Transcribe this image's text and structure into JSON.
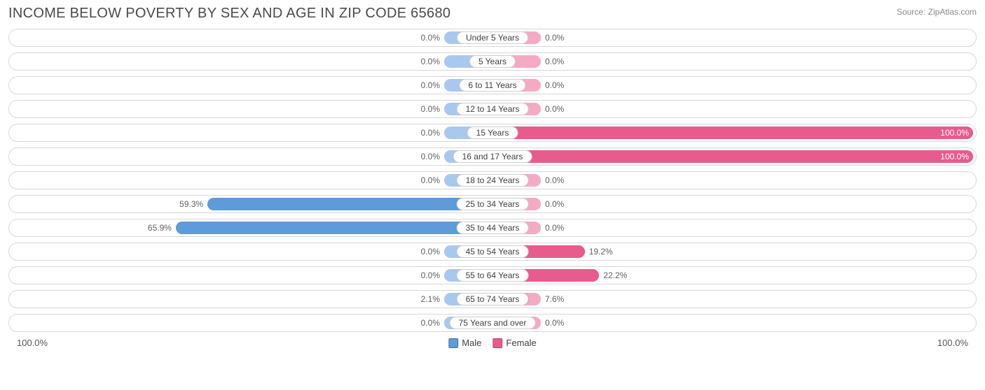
{
  "title": "INCOME BELOW POVERTY BY SEX AND AGE IN ZIP CODE 65680",
  "source": "Source: ZipAtlas.com",
  "colors": {
    "male_base": "#a9c8ef",
    "female_base": "#f5aac3",
    "male_val": "#5d9bd9",
    "female_val": "#e85b8d",
    "row_border": "#d8d8d8",
    "label_border": "#cfcfcf",
    "text": "#404040",
    "background": "#ffffff"
  },
  "chart": {
    "type": "bidirectional-bar",
    "max": 100.0,
    "base_bar_percent": 10.0,
    "axis_left": "100.0%",
    "axis_right": "100.0%",
    "legend": {
      "male": "Male",
      "female": "Female"
    },
    "rows": [
      {
        "label": "Under 5 Years",
        "male": 0.0,
        "female": 0.0,
        "male_label": "0.0%",
        "female_label": "0.0%"
      },
      {
        "label": "5 Years",
        "male": 0.0,
        "female": 0.0,
        "male_label": "0.0%",
        "female_label": "0.0%"
      },
      {
        "label": "6 to 11 Years",
        "male": 0.0,
        "female": 0.0,
        "male_label": "0.0%",
        "female_label": "0.0%"
      },
      {
        "label": "12 to 14 Years",
        "male": 0.0,
        "female": 0.0,
        "male_label": "0.0%",
        "female_label": "0.0%"
      },
      {
        "label": "15 Years",
        "male": 0.0,
        "female": 100.0,
        "male_label": "0.0%",
        "female_label": "100.0%"
      },
      {
        "label": "16 and 17 Years",
        "male": 0.0,
        "female": 100.0,
        "male_label": "0.0%",
        "female_label": "100.0%"
      },
      {
        "label": "18 to 24 Years",
        "male": 0.0,
        "female": 0.0,
        "male_label": "0.0%",
        "female_label": "0.0%"
      },
      {
        "label": "25 to 34 Years",
        "male": 59.3,
        "female": 0.0,
        "male_label": "59.3%",
        "female_label": "0.0%"
      },
      {
        "label": "35 to 44 Years",
        "male": 65.9,
        "female": 0.0,
        "male_label": "65.9%",
        "female_label": "0.0%"
      },
      {
        "label": "45 to 54 Years",
        "male": 0.0,
        "female": 19.2,
        "male_label": "0.0%",
        "female_label": "19.2%"
      },
      {
        "label": "55 to 64 Years",
        "male": 0.0,
        "female": 22.2,
        "male_label": "0.0%",
        "female_label": "22.2%"
      },
      {
        "label": "65 to 74 Years",
        "male": 2.1,
        "female": 7.6,
        "male_label": "2.1%",
        "female_label": "7.6%"
      },
      {
        "label": "75 Years and over",
        "male": 0.0,
        "female": 0.0,
        "male_label": "0.0%",
        "female_label": "0.0%"
      }
    ]
  }
}
